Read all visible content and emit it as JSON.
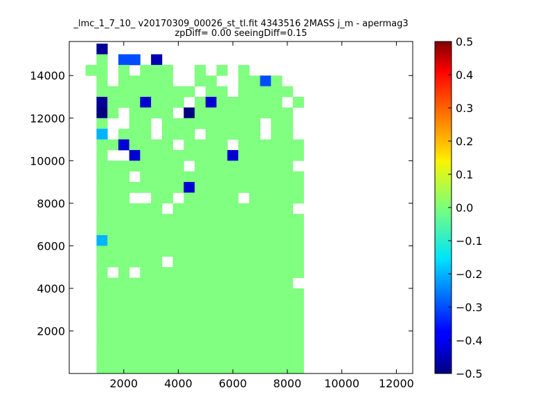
{
  "chart_data": {
    "type": "heatmap",
    "title": "_lmc_1_7_10_ v20170309_00026_st_tl.fit 4343516 2MASS j_m - apermag3",
    "subtitle": "zpDiff= 0.00 seeingDiff=0.15",
    "xlabel": "",
    "ylabel": "",
    "xlim": [
      0,
      12600
    ],
    "ylim": [
      0,
      15600
    ],
    "x_ticks": [
      2000,
      4000,
      6000,
      8000,
      10000,
      12000
    ],
    "y_ticks": [
      2000,
      4000,
      6000,
      8000,
      10000,
      12000,
      14000
    ],
    "x_tick_labels": [
      "2000",
      "4000",
      "6000",
      "8000",
      "10000",
      "12000"
    ],
    "y_tick_labels": [
      "2000",
      "4000",
      "6000",
      "8000",
      "10000",
      "12000",
      "14000"
    ],
    "colorbar": {
      "colormap": "jet",
      "vmin": -0.5,
      "vmax": 0.5,
      "ticks": [
        -0.5,
        -0.4,
        -0.3,
        -0.2,
        -0.1,
        0.0,
        0.1,
        0.2,
        0.3,
        0.4,
        0.5
      ],
      "tick_labels": [
        "−0.5",
        "−0.4",
        "−0.3",
        "−0.2",
        "−0.1",
        "0.0",
        "0.1",
        "0.2",
        "0.3",
        "0.4",
        "0.5"
      ]
    },
    "grid": false,
    "bin_width": 400,
    "bin_height": 500,
    "x_start": 1000,
    "y_start": 0,
    "rows_from_top": [
      "...5....................",
      "...~.ss.d...............",
      "..~~.~.~~~..~.~.~.......",
      "...~.~~~~~..~~..~~s~....",
      "...~~~~~~~~~.~~.~~~~~...",
      "...5~~~6~~~.~6~~~~~~.~..",
      "...4~.~~~~.4~~~~~~~~~...",
      "...~..~~.~~~~~~~~~.~~...",
      "...a.~~~.~~~.~~~~~.~~...",
      "...~~6~~~~.~~~~.~~~~~~..",
      "...~..6~~~~~~~~6~~~~~~..",
      "...~~~~~~~~.~~~~~~~~~...",
      "...~~~.~~~~~~~~~~~~~~~..",
      "...~~~~~~~~6~~~~~~~~~~..",
      "...~~~..~~.~~~~~.~~~~~..",
      "...~~~~~~.~~~~~~~~~~~...",
      "...~~~~~~~~~~~~~~~~~~~..",
      "...~~~~~~~~~~~~~~~~~~~..",
      "...a~~~~~~~~~~~~~~~~~~..",
      "...~~~~~~~~~~~~~~~~~~~..",
      "...~~~~~~.~~~~~~~~~~~~..",
      "...~.~.~~~~~~~~~~~~~~~..",
      "...~~~~~~~~~~~~~~~~~~...",
      "...~~~~~~~~~~~~~~~~~~~..",
      "...~~~~~~~~~~~~~~~~~~~..",
      "...~~~~~~~~~~~~~~~~~~~..",
      "...~~~~~~~~~~~~~~~~~~~..",
      "...~~~~~~~~~~~~~~~~~~~..",
      "...~~~~~~~~~~~~~~~~~~~..",
      "...~~~~~~~~~~~~~~~~~~~..",
      "...~~~~~~~~~~~~~~~~~~~.."
    ]
  }
}
